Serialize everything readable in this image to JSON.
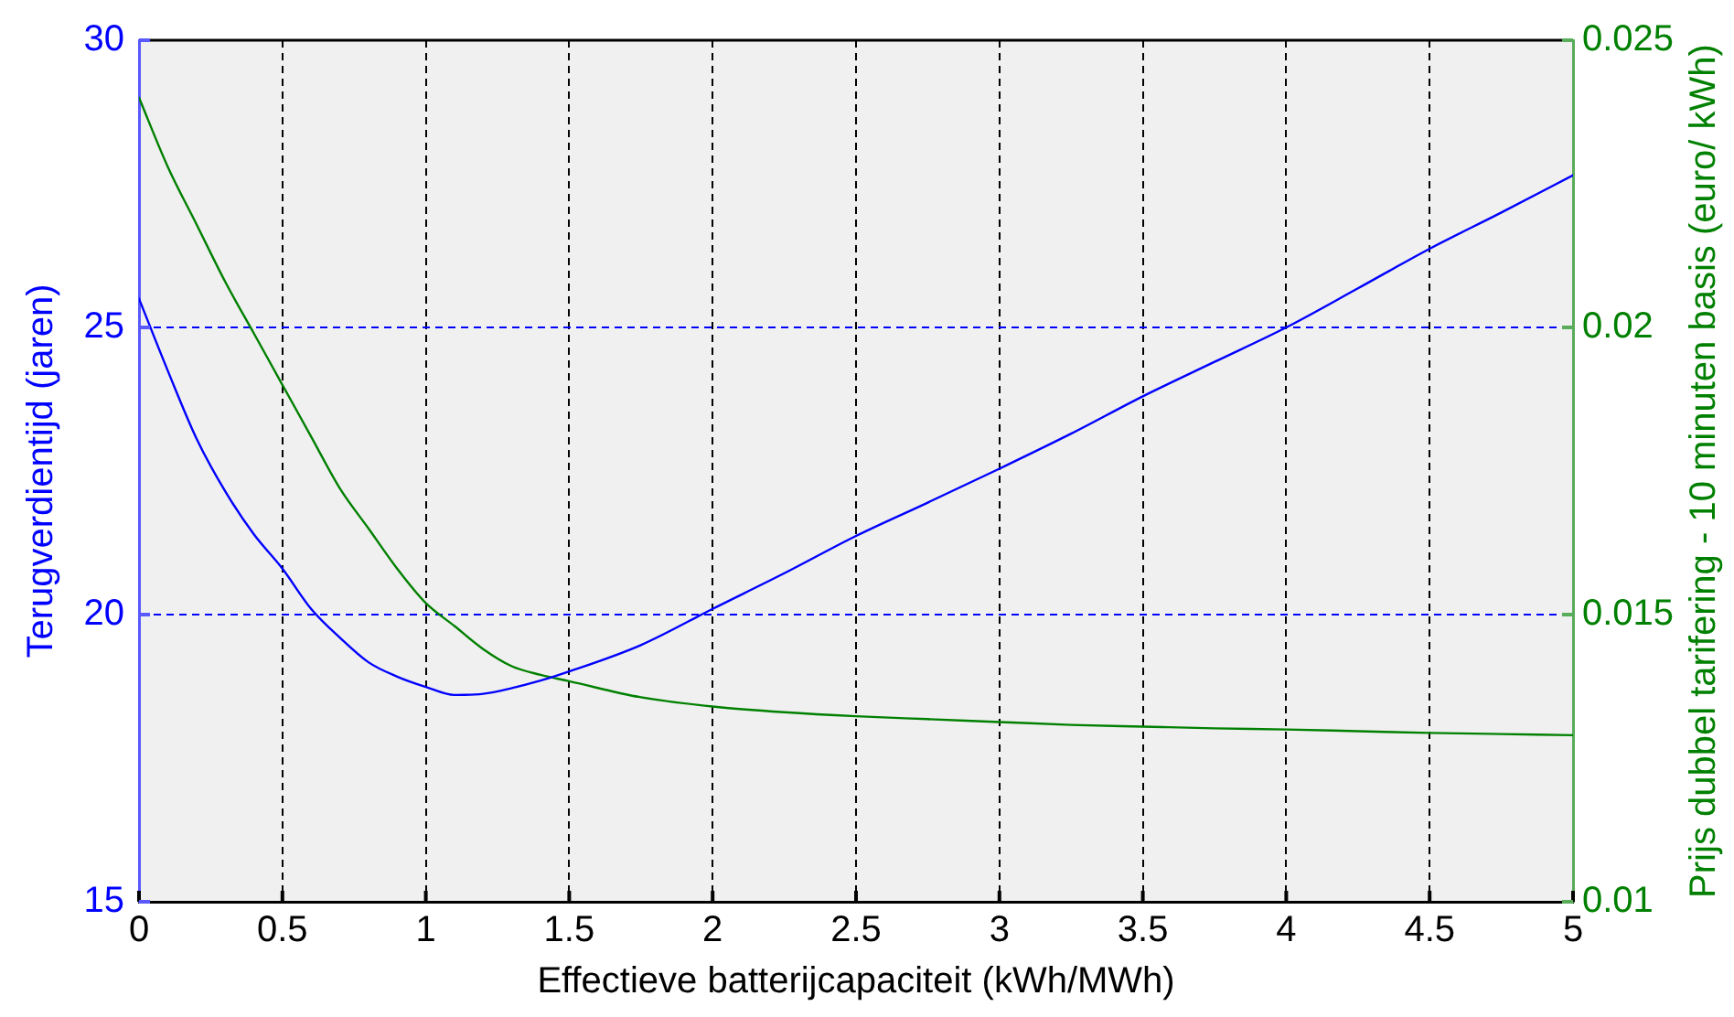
{
  "chart_data": {
    "type": "line",
    "xlabel": "Effectieve batterijcapaciteit (kWh/MWh)",
    "ylabel": "Terugverdientijd (jaren)",
    "y2label": "Prijs dubbel tarifering - 10 minuten basis (euro/ kWh)",
    "xlim": [
      0,
      5
    ],
    "xticks": [
      0,
      0.5,
      1,
      1.5,
      2,
      2.5,
      3,
      3.5,
      4,
      4.5,
      5
    ],
    "ylim": [
      15,
      30
    ],
    "yticks": [
      15,
      20,
      25,
      30
    ],
    "y2lim": [
      0.01,
      0.025
    ],
    "y2ticks": [
      0.01,
      0.015,
      0.02,
      0.025
    ],
    "grid": true,
    "x": [
      0,
      0.1,
      0.2,
      0.3,
      0.4,
      0.5,
      0.6,
      0.7,
      0.8,
      0.9,
      1,
      1.1,
      1.2,
      1.3,
      1.4,
      1.5,
      1.75,
      2,
      2.25,
      2.5,
      2.75,
      3,
      3.25,
      3.5,
      3.75,
      4,
      4.25,
      4.5,
      4.75,
      5
    ],
    "series": [
      {
        "color": "#0000ff",
        "values": [
          25.5,
          24.25,
          23.07,
          22.15,
          21.4,
          20.8,
          20.1,
          19.6,
          19.17,
          18.92,
          18.74,
          18.6,
          18.62,
          18.72,
          18.85,
          19.01,
          19.47,
          20.1,
          20.72,
          21.37,
          21.95,
          22.54,
          23.15,
          23.8,
          24.4,
          25.0,
          25.68,
          26.37,
          27.0,
          27.65
        ]
      },
      {
        "color": "#008000",
        "axis": "y2",
        "values": [
          0.024,
          0.0228,
          0.0218,
          0.0208,
          0.0199,
          0.019,
          0.0181,
          0.0172,
          0.0165,
          0.0158,
          0.0152,
          0.0148,
          0.0144,
          0.0141,
          0.01395,
          0.01384,
          0.01356,
          0.0134,
          0.0133,
          0.01323,
          0.01318,
          0.01313,
          0.01308,
          0.01305,
          0.01302,
          0.013,
          0.01297,
          0.01294,
          0.01292,
          0.0129
        ]
      }
    ]
  }
}
